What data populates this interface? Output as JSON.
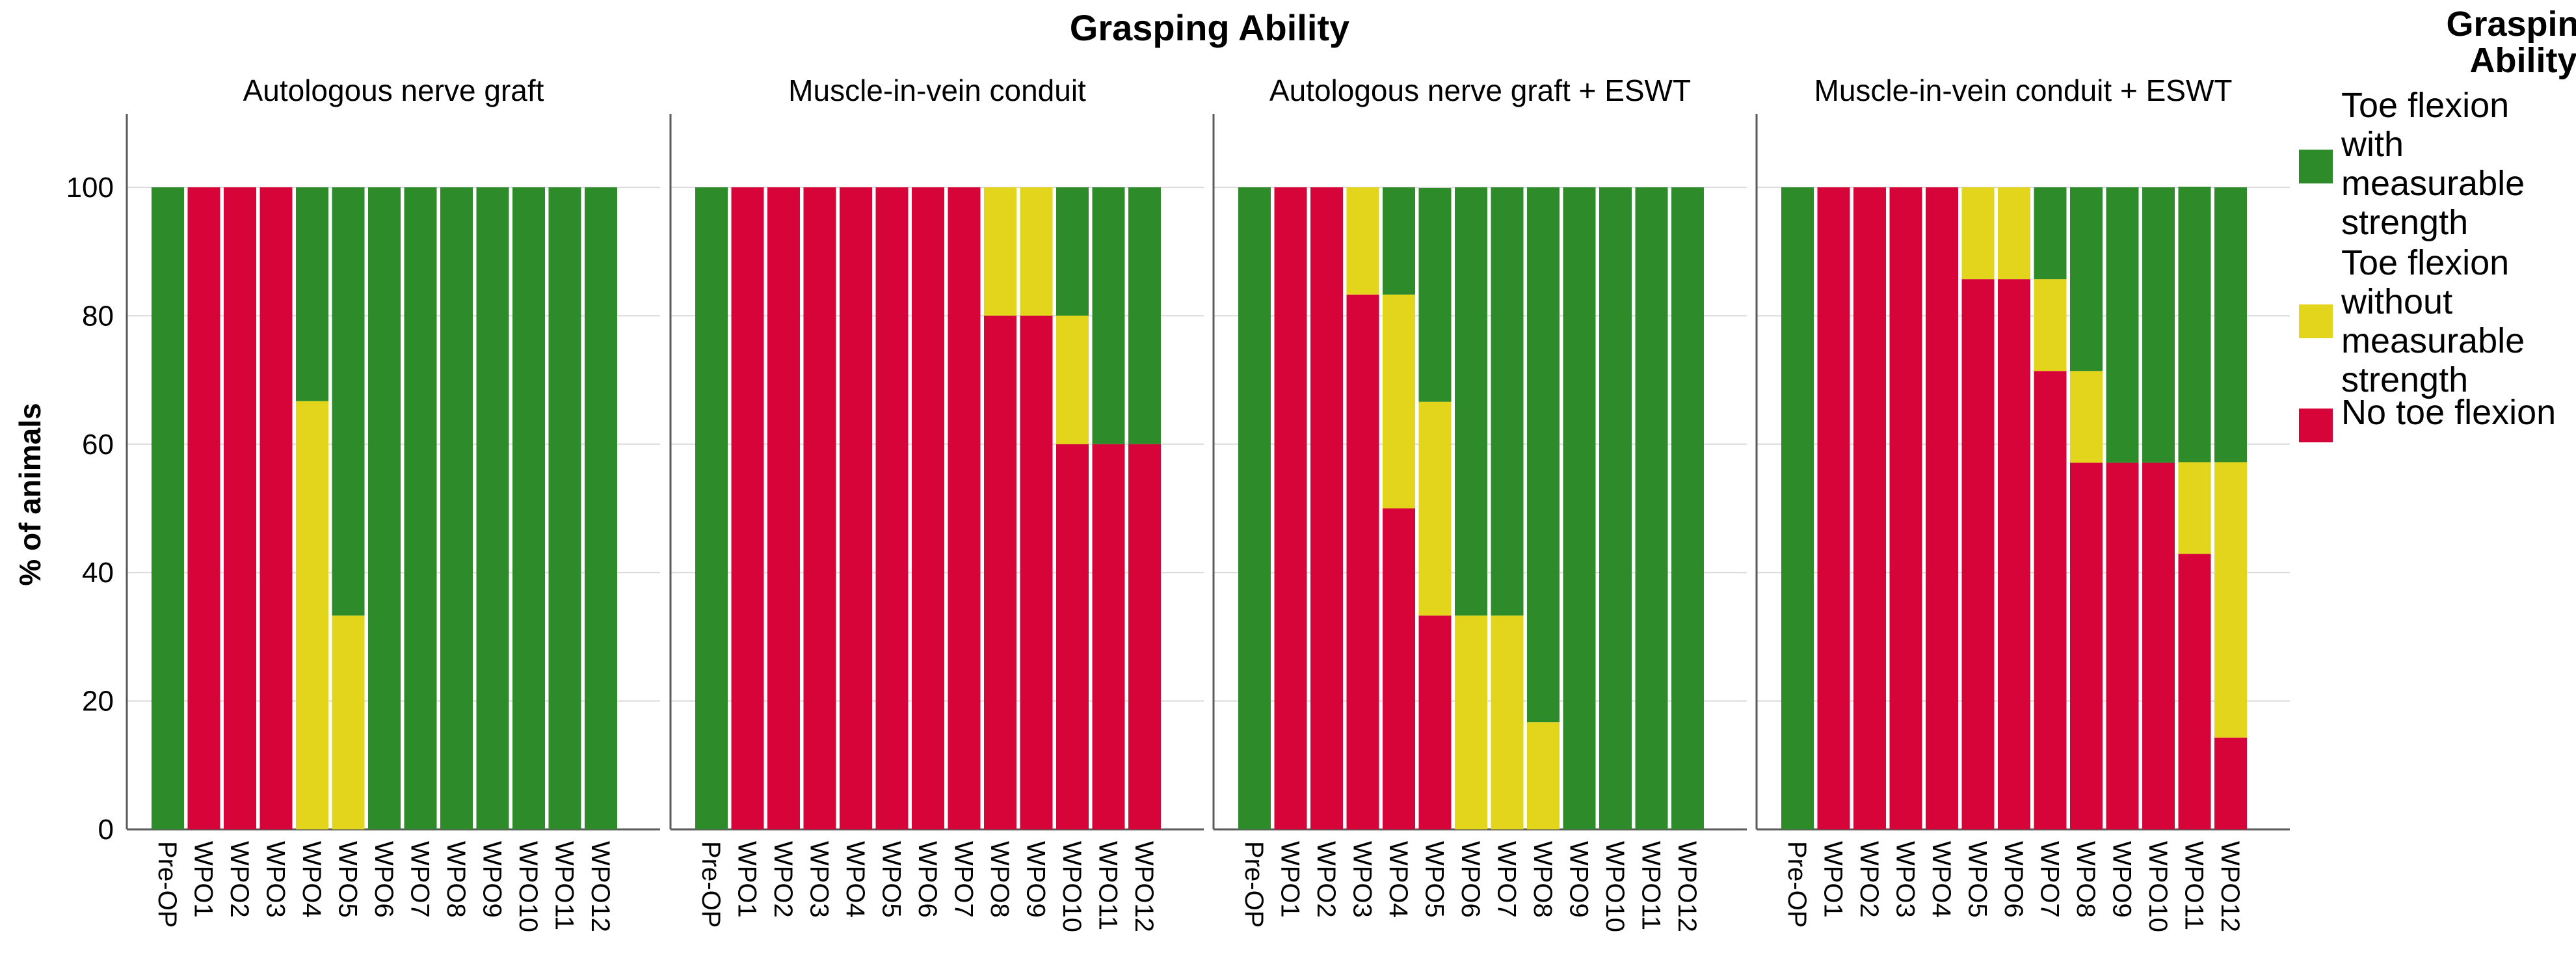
{
  "chart_data": {
    "type": "bar",
    "stacked": true,
    "title": "Grasping Ability",
    "ylabel": "% of animals",
    "xlabel": "",
    "ylim": [
      0,
      100
    ],
    "yticks": [
      "0",
      "20",
      "40",
      "60",
      "80",
      "100"
    ],
    "categories": [
      "Pre-OP",
      "WPO1",
      "WPO2",
      "WPO3",
      "WPO4",
      "WPO5",
      "WPO6",
      "WPO7",
      "WPO8",
      "WPO9",
      "WPO10",
      "WPO11",
      "WPO12"
    ],
    "legend": {
      "title": "Grasping Ability",
      "placement": "right",
      "items": [
        {
          "key": "with",
          "label": "Toe flexion with measurable strength",
          "lines": [
            "Toe flexion",
            "with",
            "measurable",
            "strength"
          ],
          "color": "#2e8b2a"
        },
        {
          "key": "without",
          "label": "Toe flexion without measurable strength",
          "lines": [
            "Toe flexion",
            "without",
            "measurable",
            "strength"
          ],
          "color": "#e2d51c"
        },
        {
          "key": "none",
          "label": "No toe flexion",
          "lines": [
            "No toe flexion"
          ],
          "color": "#d7043a"
        }
      ]
    },
    "panels": [
      {
        "title": "Autologous nerve graft",
        "series": [
          {
            "name": "No toe flexion",
            "values": [
              0,
              100,
              100,
              100,
              0,
              0,
              0,
              0,
              0,
              0,
              0,
              0,
              0
            ]
          },
          {
            "name": "Toe flexion without measurable strength",
            "values": [
              0,
              0,
              0,
              0,
              66.7,
              33.3,
              0,
              0,
              0,
              0,
              0,
              0,
              0
            ]
          },
          {
            "name": "Toe flexion with measurable strength",
            "values": [
              100,
              0,
              0,
              0,
              33.3,
              66.7,
              100,
              100,
              100,
              100,
              100,
              100,
              100
            ]
          }
        ]
      },
      {
        "title": "Muscle-in-vein conduit",
        "series": [
          {
            "name": "No toe flexion",
            "values": [
              0,
              100,
              100,
              100,
              100,
              100,
              100,
              100,
              80,
              80,
              60,
              60,
              60
            ]
          },
          {
            "name": "Toe flexion without measurable strength",
            "values": [
              0,
              0,
              0,
              0,
              0,
              0,
              0,
              0,
              20,
              20,
              20,
              0,
              0
            ]
          },
          {
            "name": "Toe flexion with measurable strength",
            "values": [
              100,
              0,
              0,
              0,
              0,
              0,
              0,
              0,
              0,
              0,
              20,
              40,
              40
            ]
          }
        ]
      },
      {
        "title": "Autologous nerve graft + ESWT",
        "series": [
          {
            "name": "No toe flexion",
            "values": [
              0,
              100,
              100,
              83.3,
              50,
              33.3,
              0,
              0,
              0,
              0,
              0,
              0,
              0
            ]
          },
          {
            "name": "Toe flexion without measurable strength",
            "values": [
              0,
              0,
              0,
              16.7,
              33.3,
              33.3,
              33.3,
              33.3,
              16.7,
              0,
              0,
              0,
              0
            ]
          },
          {
            "name": "Toe flexion with measurable strength",
            "values": [
              100,
              0,
              0,
              0,
              16.7,
              33.3,
              66.7,
              66.7,
              83.3,
              100,
              100,
              100,
              100
            ]
          }
        ]
      },
      {
        "title": "Muscle-in-vein conduit +  ESWT",
        "series": [
          {
            "name": "No toe flexion",
            "values": [
              0,
              100,
              100,
              100,
              100,
              85.7,
              85.7,
              71.4,
              57.1,
              57.1,
              57.1,
              42.9,
              14.3
            ]
          },
          {
            "name": "Toe flexion without measurable strength",
            "values": [
              0,
              0,
              0,
              0,
              0,
              14.3,
              14.3,
              14.3,
              14.3,
              0,
              0,
              14.3,
              42.9
            ]
          },
          {
            "name": "Toe flexion with measurable strength",
            "values": [
              100,
              0,
              0,
              0,
              0,
              0,
              0,
              14.3,
              28.6,
              42.9,
              42.9,
              42.9,
              42.8
            ]
          }
        ]
      }
    ]
  }
}
